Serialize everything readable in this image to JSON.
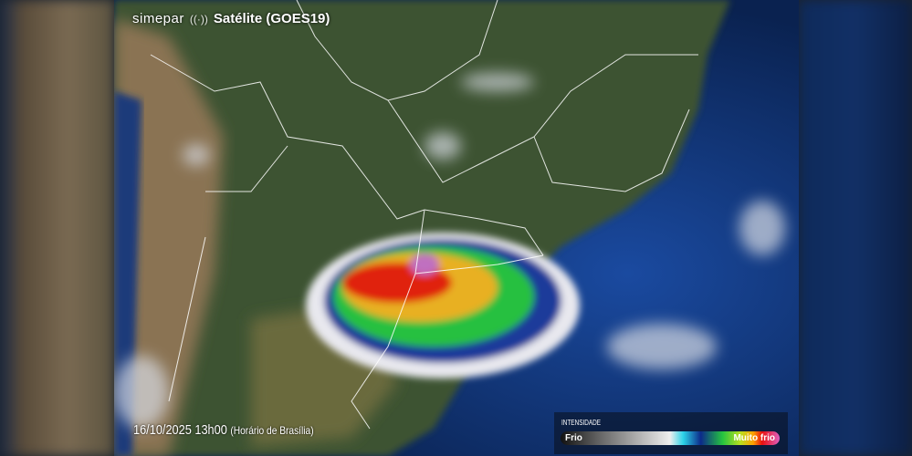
{
  "header": {
    "brand": "simepar",
    "title": "Satélite (GOES19)",
    "icon": "broadcast-signal-icon"
  },
  "timestamp": {
    "datetime": "16/10/2025 13h00",
    "timezone": "(Horário de Brasília)"
  },
  "legend": {
    "title": "INTENSIDADE",
    "low": "Frio",
    "high": "Muito frio",
    "colors": [
      "#111111",
      "#bbbbbb",
      "#2cd3e8",
      "#0c2a8a",
      "#25c440",
      "#ffa000",
      "#e81010",
      "#e060c0"
    ]
  }
}
